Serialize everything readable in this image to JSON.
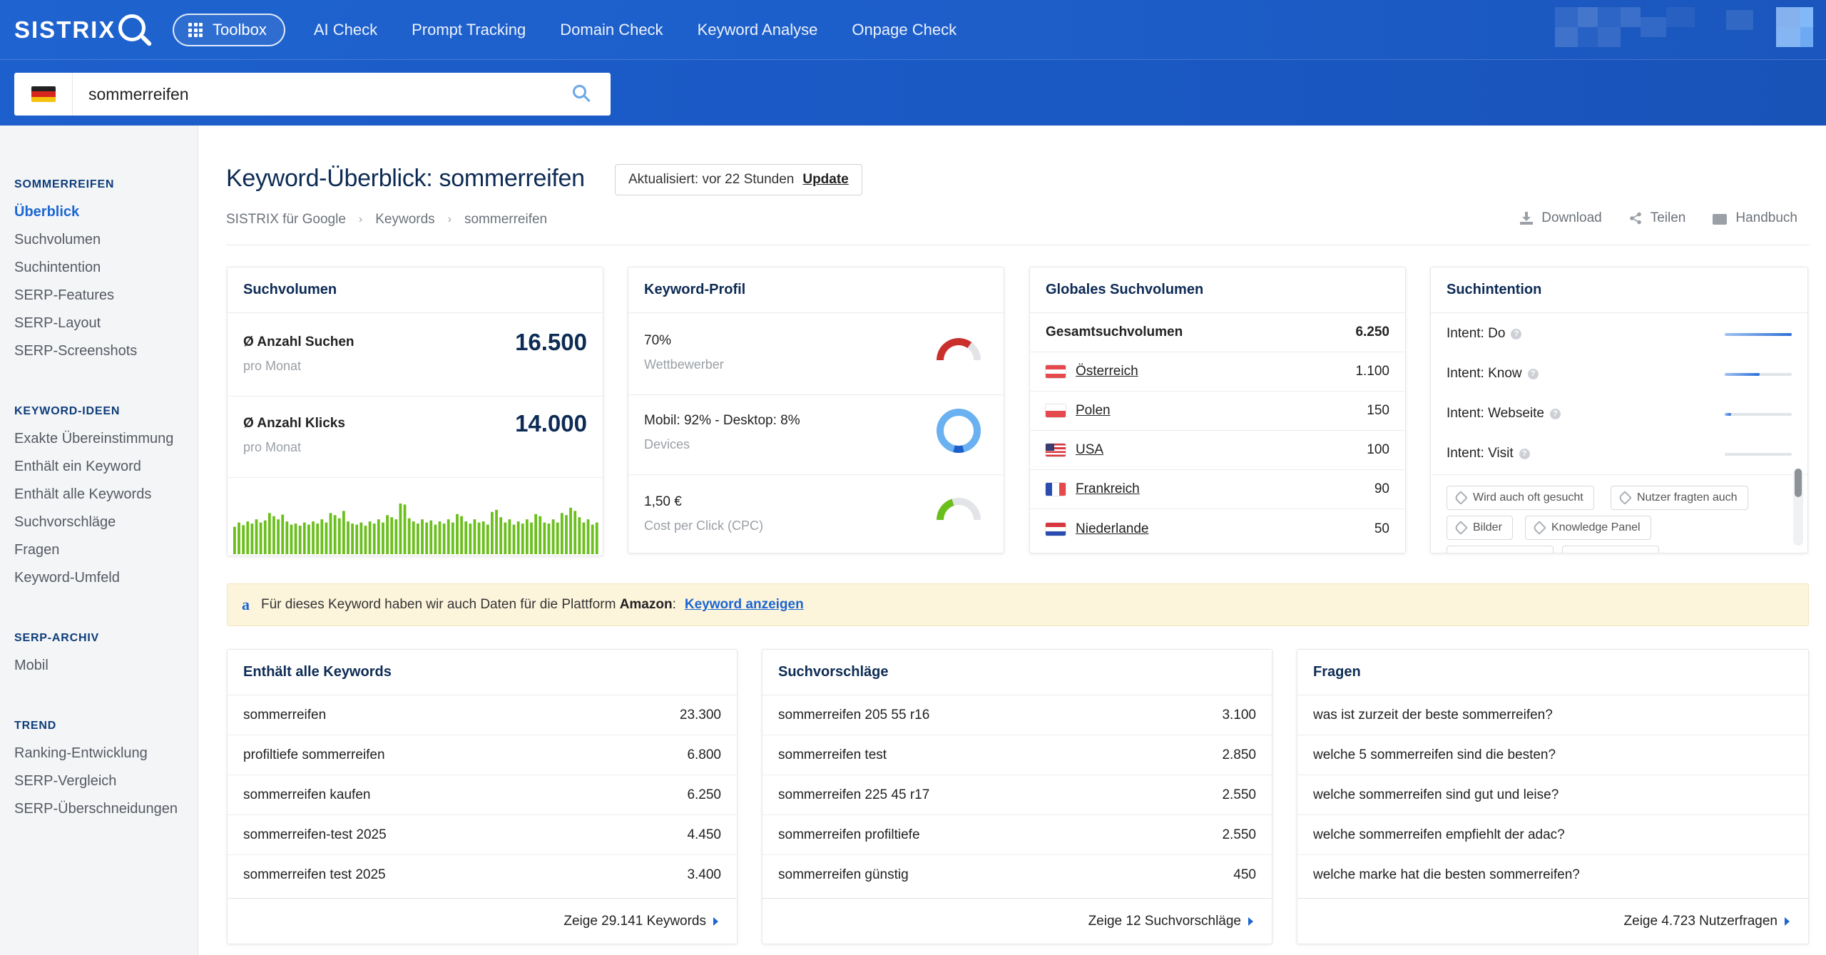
{
  "header": {
    "logo_text": "SISTRIX",
    "toolbox_label": "Toolbox",
    "nav": [
      "AI Check",
      "Prompt Tracking",
      "Domain Check",
      "Keyword Analyse",
      "Onpage Check"
    ]
  },
  "search": {
    "country": "DE",
    "value": "sommerreifen"
  },
  "sidebar": {
    "sections": [
      {
        "title": "SOMMERREIFEN",
        "items": [
          "Überblick",
          "Suchvolumen",
          "Suchintention",
          "SERP-Features",
          "SERP-Layout",
          "SERP-Screenshots"
        ]
      },
      {
        "title": "KEYWORD-IDEEN",
        "items": [
          "Exakte Übereinstimmung",
          "Enthält ein Keyword",
          "Enthält alle Keywords",
          "Suchvorschläge",
          "Fragen",
          "Keyword-Umfeld"
        ]
      },
      {
        "title": "SERP-ARCHIV",
        "items": [
          "Mobil"
        ]
      },
      {
        "title": "TREND",
        "items": [
          "Ranking-Entwicklung",
          "SERP-Vergleich",
          "SERP-Überschneidungen"
        ]
      }
    ],
    "active": "Überblick"
  },
  "page": {
    "title": "Keyword-Überblick: sommerreifen",
    "updated_text": "Aktualisiert: vor 22 Stunden",
    "update_button": "Update",
    "breadcrumb": [
      "SISTRIX für Google",
      "Keywords",
      "sommerreifen"
    ],
    "actions": {
      "download": "Download",
      "share": "Teilen",
      "manual": "Handbuch"
    }
  },
  "suchvolumen": {
    "title": "Suchvolumen",
    "searches_label": "Ø Anzahl Suchen",
    "searches_sub": "pro Monat",
    "searches_value": "16.500",
    "clicks_label": "Ø Anzahl Klicks",
    "clicks_sub": "pro Monat",
    "clicks_value": "14.000",
    "bar_color": "#6bbf1d",
    "trend": [
      0.52,
      0.6,
      0.55,
      0.62,
      0.58,
      0.66,
      0.6,
      0.64,
      0.78,
      0.72,
      0.66,
      0.75,
      0.62,
      0.56,
      0.58,
      0.54,
      0.6,
      0.56,
      0.62,
      0.58,
      0.66,
      0.6,
      0.78,
      0.74,
      0.68,
      0.82,
      0.62,
      0.58,
      0.56,
      0.6,
      0.54,
      0.62,
      0.58,
      0.66,
      0.6,
      0.74,
      0.7,
      0.66,
      0.96,
      0.94,
      0.68,
      0.62,
      0.58,
      0.66,
      0.6,
      0.64,
      0.56,
      0.62,
      0.58,
      0.66,
      0.6,
      0.76,
      0.72,
      0.62,
      0.58,
      0.66,
      0.6,
      0.62,
      0.56,
      0.8,
      0.84,
      0.7,
      0.6,
      0.66,
      0.56,
      0.62,
      0.58,
      0.66,
      0.6,
      0.76,
      0.72,
      0.6,
      0.58,
      0.66,
      0.6,
      0.78,
      0.74,
      0.88,
      0.82,
      0.7,
      0.6,
      0.66,
      0.56,
      0.6
    ]
  },
  "keyword_profile": {
    "title": "Keyword-Profil",
    "competition_value": "70%",
    "competition_label": "Wettbewerber",
    "competition_fraction": 0.7,
    "devices_value": "Mobil: 92% - Desktop: 8%",
    "devices_label": "Devices",
    "mobile_fraction": 0.92,
    "cpc_value": "1,50 €",
    "cpc_label": "Cost per Click (CPC)",
    "cpc_fraction": 0.4,
    "colors": {
      "competition": "#c9302c",
      "devices": "#5aa8f0",
      "cpc": "#6bbf1d",
      "track": "#e2e4e7"
    }
  },
  "global_volume": {
    "title": "Globales Suchvolumen",
    "total_label": "Gesamtsuchvolumen",
    "total_value": "6.250",
    "countries": [
      {
        "name": "Österreich",
        "value": "1.100",
        "flag": "at"
      },
      {
        "name": "Polen",
        "value": "150",
        "flag": "pl"
      },
      {
        "name": "USA",
        "value": "100",
        "flag": "us"
      },
      {
        "name": "Frankreich",
        "value": "90",
        "flag": "fr"
      },
      {
        "name": "Niederlande",
        "value": "50",
        "flag": "nl"
      }
    ]
  },
  "intent": {
    "title": "Suchintention",
    "items": [
      {
        "label": "Intent: Do",
        "level": 1.0
      },
      {
        "label": "Intent: Know",
        "level": 0.52
      },
      {
        "label": "Intent: Webseite",
        "level": 0.1
      },
      {
        "label": "Intent: Visit",
        "level": 0.0
      }
    ],
    "chips": [
      "Wird auch oft gesucht",
      "Nutzer fragten auch",
      "Bilder",
      "Knowledge Panel"
    ]
  },
  "amazon": {
    "logo": "a",
    "text_before": "Für dieses Keyword haben wir auch Daten für die Plattform",
    "platform": "Amazon",
    "colon": ":",
    "link": "Keyword anzeigen"
  },
  "keywords_all": {
    "title": "Enthält alle Keywords",
    "rows": [
      {
        "k": "sommerreifen",
        "v": "23.300"
      },
      {
        "k": "profiltiefe sommerreifen",
        "v": "6.800"
      },
      {
        "k": "sommerreifen kaufen",
        "v": "6.250"
      },
      {
        "k": "sommerreifen-test 2025",
        "v": "4.450"
      },
      {
        "k": "sommerreifen test 2025",
        "v": "3.400"
      }
    ],
    "footer": "Zeige 29.141 Keywords"
  },
  "suggestions": {
    "title": "Suchvorschläge",
    "rows": [
      {
        "k": "sommerreifen 205 55 r16",
        "v": "3.100"
      },
      {
        "k": "sommerreifen test",
        "v": "2.850"
      },
      {
        "k": "sommerreifen 225 45 r17",
        "v": "2.550"
      },
      {
        "k": "sommerreifen profiltiefe",
        "v": "2.550"
      },
      {
        "k": "sommerreifen günstig",
        "v": "450"
      }
    ],
    "footer": "Zeige 12 Suchvorschläge"
  },
  "questions": {
    "title": "Fragen",
    "rows": [
      "was ist zurzeit der beste sommerreifen?",
      "welche 5 sommerreifen sind die besten?",
      "welche sommerreifen sind gut und leise?",
      "welche sommerreifen empfiehlt der adac?",
      "welche marke hat die besten sommerreifen?"
    ],
    "footer": "Zeige 4.723 Nutzerfragen"
  }
}
